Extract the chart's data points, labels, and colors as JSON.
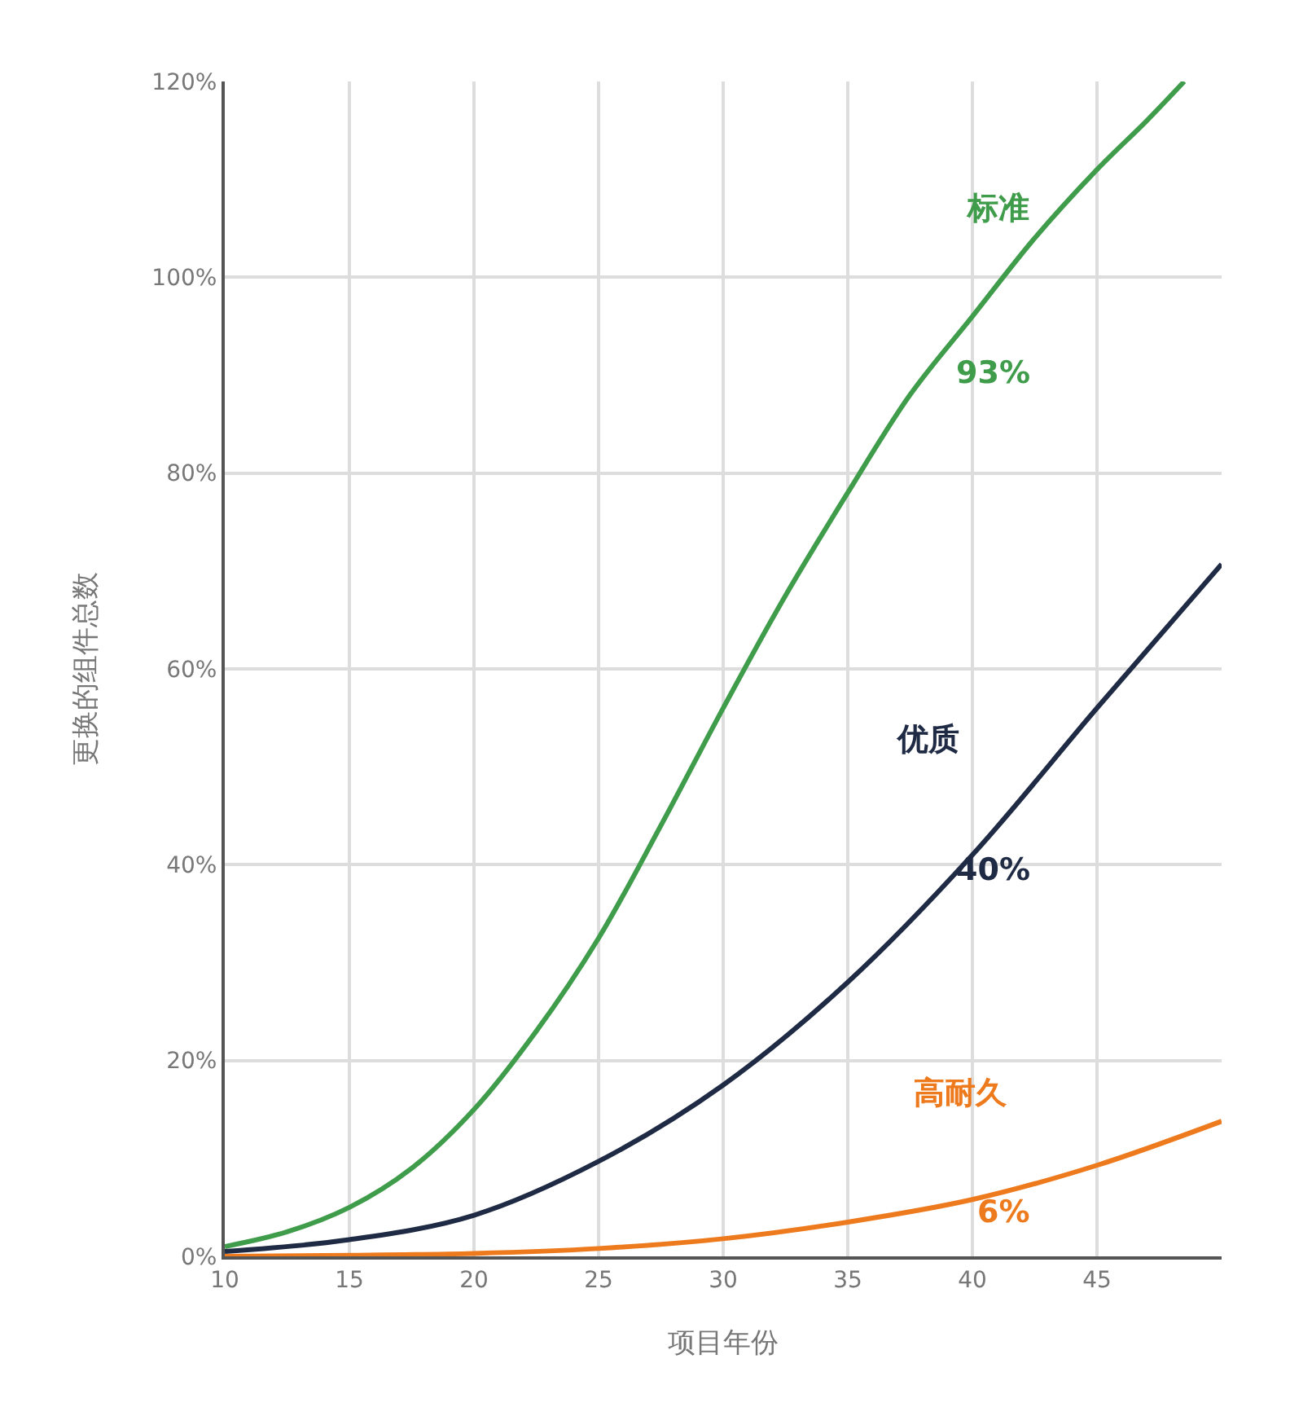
{
  "chart_data": {
    "type": "line",
    "xlabel": "项目年份",
    "ylabel": "更换的组件总数",
    "xlim": [
      10,
      50
    ],
    "xticks": [
      10,
      15,
      20,
      25,
      30,
      35,
      40,
      45
    ],
    "ylim": [
      0,
      120
    ],
    "yticks": [
      {
        "value": 0,
        "label": "0%"
      },
      {
        "value": 20,
        "label": "20%"
      },
      {
        "value": 40,
        "label": "40%"
      },
      {
        "value": 60,
        "label": "60%"
      },
      {
        "value": 80,
        "label": "80%"
      },
      {
        "value": 100,
        "label": "100%"
      },
      {
        "value": 120,
        "label": "120%"
      }
    ],
    "grid": true,
    "legend": false,
    "marker": "none",
    "line_style": "solid",
    "series": [
      {
        "name": "标准",
        "color": "#3f9c4a",
        "x": [
          10,
          12.5,
          15,
          17.5,
          20,
          22.5,
          25,
          27.5,
          30,
          32.5,
          35,
          37.5,
          40,
          42.5,
          45,
          47,
          48.5
        ],
        "values": [
          1,
          2.5,
          5,
          9,
          15,
          23,
          32.5,
          44,
          56,
          67.5,
          78,
          88,
          96,
          104,
          111,
          116,
          120
        ]
      },
      {
        "name": "优质",
        "color": "#1f2a44",
        "x": [
          10,
          15,
          20,
          25,
          30,
          35,
          40,
          45,
          50
        ],
        "values": [
          0.5,
          1.7,
          4.2,
          9.7,
          17.5,
          28,
          41,
          56,
          70.7
        ]
      },
      {
        "name": "高耐久",
        "color": "#ee7a1e",
        "x": [
          10,
          15,
          20,
          25,
          30,
          35,
          40,
          45,
          50
        ],
        "values": [
          0,
          0.1,
          0.3,
          0.8,
          1.8,
          3.5,
          5.8,
          9.3,
          13.8
        ]
      }
    ],
    "annotations": [
      "93%",
      "40%",
      "6%"
    ]
  }
}
